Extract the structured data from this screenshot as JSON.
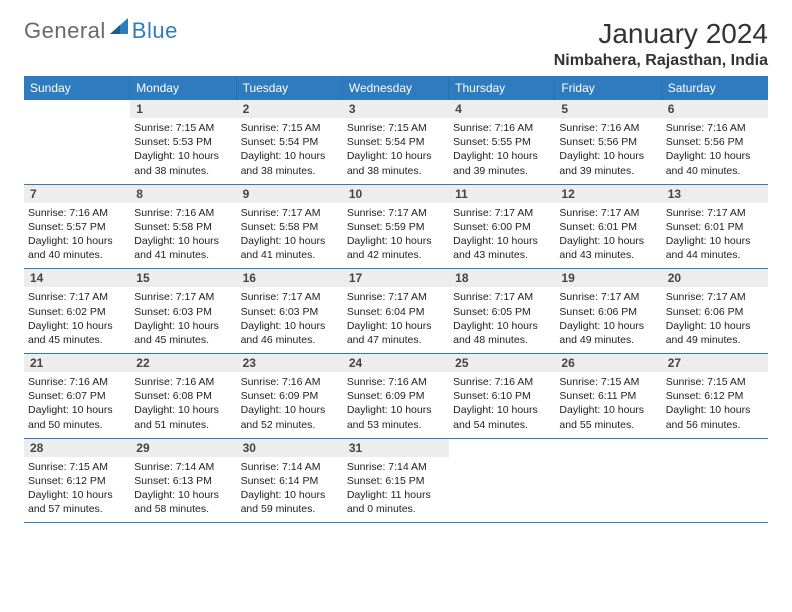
{
  "brand": {
    "part1": "General",
    "part2": "Blue"
  },
  "header": {
    "month": "January 2024",
    "location": "Nimbahera, Rajasthan, India"
  },
  "colors": {
    "accent": "#2f7bbf",
    "header_bg": "#ededed",
    "text": "#222222",
    "bg": "#ffffff",
    "logo_gray": "#696969"
  },
  "dow": [
    "Sunday",
    "Monday",
    "Tuesday",
    "Wednesday",
    "Thursday",
    "Friday",
    "Saturday"
  ],
  "weeks": [
    [
      null,
      {
        "n": "1",
        "sr": "Sunrise: 7:15 AM",
        "ss": "Sunset: 5:53 PM",
        "d1": "Daylight: 10 hours",
        "d2": "and 38 minutes."
      },
      {
        "n": "2",
        "sr": "Sunrise: 7:15 AM",
        "ss": "Sunset: 5:54 PM",
        "d1": "Daylight: 10 hours",
        "d2": "and 38 minutes."
      },
      {
        "n": "3",
        "sr": "Sunrise: 7:15 AM",
        "ss": "Sunset: 5:54 PM",
        "d1": "Daylight: 10 hours",
        "d2": "and 38 minutes."
      },
      {
        "n": "4",
        "sr": "Sunrise: 7:16 AM",
        "ss": "Sunset: 5:55 PM",
        "d1": "Daylight: 10 hours",
        "d2": "and 39 minutes."
      },
      {
        "n": "5",
        "sr": "Sunrise: 7:16 AM",
        "ss": "Sunset: 5:56 PM",
        "d1": "Daylight: 10 hours",
        "d2": "and 39 minutes."
      },
      {
        "n": "6",
        "sr": "Sunrise: 7:16 AM",
        "ss": "Sunset: 5:56 PM",
        "d1": "Daylight: 10 hours",
        "d2": "and 40 minutes."
      }
    ],
    [
      {
        "n": "7",
        "sr": "Sunrise: 7:16 AM",
        "ss": "Sunset: 5:57 PM",
        "d1": "Daylight: 10 hours",
        "d2": "and 40 minutes."
      },
      {
        "n": "8",
        "sr": "Sunrise: 7:16 AM",
        "ss": "Sunset: 5:58 PM",
        "d1": "Daylight: 10 hours",
        "d2": "and 41 minutes."
      },
      {
        "n": "9",
        "sr": "Sunrise: 7:17 AM",
        "ss": "Sunset: 5:58 PM",
        "d1": "Daylight: 10 hours",
        "d2": "and 41 minutes."
      },
      {
        "n": "10",
        "sr": "Sunrise: 7:17 AM",
        "ss": "Sunset: 5:59 PM",
        "d1": "Daylight: 10 hours",
        "d2": "and 42 minutes."
      },
      {
        "n": "11",
        "sr": "Sunrise: 7:17 AM",
        "ss": "Sunset: 6:00 PM",
        "d1": "Daylight: 10 hours",
        "d2": "and 43 minutes."
      },
      {
        "n": "12",
        "sr": "Sunrise: 7:17 AM",
        "ss": "Sunset: 6:01 PM",
        "d1": "Daylight: 10 hours",
        "d2": "and 43 minutes."
      },
      {
        "n": "13",
        "sr": "Sunrise: 7:17 AM",
        "ss": "Sunset: 6:01 PM",
        "d1": "Daylight: 10 hours",
        "d2": "and 44 minutes."
      }
    ],
    [
      {
        "n": "14",
        "sr": "Sunrise: 7:17 AM",
        "ss": "Sunset: 6:02 PM",
        "d1": "Daylight: 10 hours",
        "d2": "and 45 minutes."
      },
      {
        "n": "15",
        "sr": "Sunrise: 7:17 AM",
        "ss": "Sunset: 6:03 PM",
        "d1": "Daylight: 10 hours",
        "d2": "and 45 minutes."
      },
      {
        "n": "16",
        "sr": "Sunrise: 7:17 AM",
        "ss": "Sunset: 6:03 PM",
        "d1": "Daylight: 10 hours",
        "d2": "and 46 minutes."
      },
      {
        "n": "17",
        "sr": "Sunrise: 7:17 AM",
        "ss": "Sunset: 6:04 PM",
        "d1": "Daylight: 10 hours",
        "d2": "and 47 minutes."
      },
      {
        "n": "18",
        "sr": "Sunrise: 7:17 AM",
        "ss": "Sunset: 6:05 PM",
        "d1": "Daylight: 10 hours",
        "d2": "and 48 minutes."
      },
      {
        "n": "19",
        "sr": "Sunrise: 7:17 AM",
        "ss": "Sunset: 6:06 PM",
        "d1": "Daylight: 10 hours",
        "d2": "and 49 minutes."
      },
      {
        "n": "20",
        "sr": "Sunrise: 7:17 AM",
        "ss": "Sunset: 6:06 PM",
        "d1": "Daylight: 10 hours",
        "d2": "and 49 minutes."
      }
    ],
    [
      {
        "n": "21",
        "sr": "Sunrise: 7:16 AM",
        "ss": "Sunset: 6:07 PM",
        "d1": "Daylight: 10 hours",
        "d2": "and 50 minutes."
      },
      {
        "n": "22",
        "sr": "Sunrise: 7:16 AM",
        "ss": "Sunset: 6:08 PM",
        "d1": "Daylight: 10 hours",
        "d2": "and 51 minutes."
      },
      {
        "n": "23",
        "sr": "Sunrise: 7:16 AM",
        "ss": "Sunset: 6:09 PM",
        "d1": "Daylight: 10 hours",
        "d2": "and 52 minutes."
      },
      {
        "n": "24",
        "sr": "Sunrise: 7:16 AM",
        "ss": "Sunset: 6:09 PM",
        "d1": "Daylight: 10 hours",
        "d2": "and 53 minutes."
      },
      {
        "n": "25",
        "sr": "Sunrise: 7:16 AM",
        "ss": "Sunset: 6:10 PM",
        "d1": "Daylight: 10 hours",
        "d2": "and 54 minutes."
      },
      {
        "n": "26",
        "sr": "Sunrise: 7:15 AM",
        "ss": "Sunset: 6:11 PM",
        "d1": "Daylight: 10 hours",
        "d2": "and 55 minutes."
      },
      {
        "n": "27",
        "sr": "Sunrise: 7:15 AM",
        "ss": "Sunset: 6:12 PM",
        "d1": "Daylight: 10 hours",
        "d2": "and 56 minutes."
      }
    ],
    [
      {
        "n": "28",
        "sr": "Sunrise: 7:15 AM",
        "ss": "Sunset: 6:12 PM",
        "d1": "Daylight: 10 hours",
        "d2": "and 57 minutes."
      },
      {
        "n": "29",
        "sr": "Sunrise: 7:14 AM",
        "ss": "Sunset: 6:13 PM",
        "d1": "Daylight: 10 hours",
        "d2": "and 58 minutes."
      },
      {
        "n": "30",
        "sr": "Sunrise: 7:14 AM",
        "ss": "Sunset: 6:14 PM",
        "d1": "Daylight: 10 hours",
        "d2": "and 59 minutes."
      },
      {
        "n": "31",
        "sr": "Sunrise: 7:14 AM",
        "ss": "Sunset: 6:15 PM",
        "d1": "Daylight: 11 hours",
        "d2": "and 0 minutes."
      },
      null,
      null,
      null
    ]
  ]
}
